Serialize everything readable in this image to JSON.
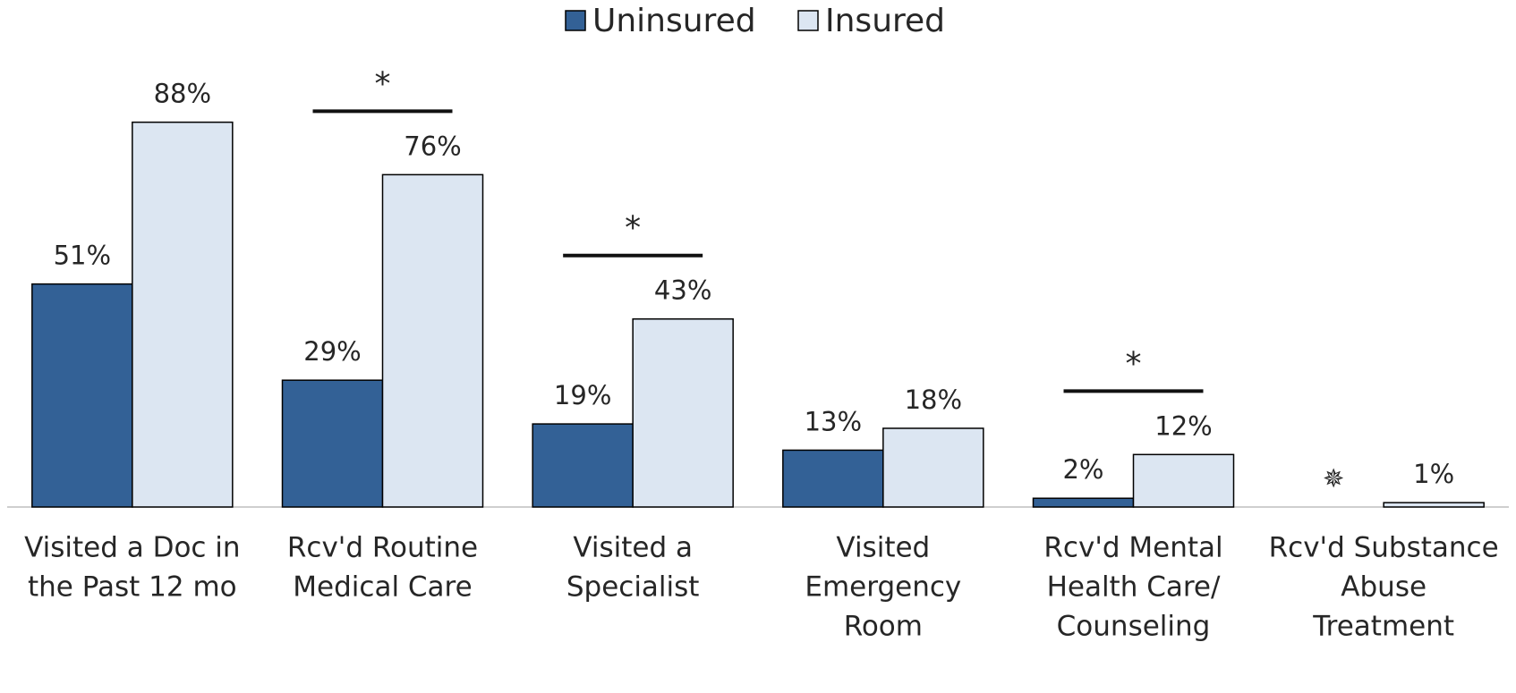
{
  "chart_data": {
    "type": "bar",
    "categories": [
      [
        "Visited a Doc in",
        "the Past 12 mo"
      ],
      [
        "Rcv'd Routine",
        "Medical Care"
      ],
      [
        "Visited a",
        "Specialist"
      ],
      [
        "Visited",
        "Emergency",
        "Room"
      ],
      [
        "Rcv'd Mental",
        "Health Care/",
        "Counseling"
      ],
      [
        "Rcv'd Substance",
        "Abuse",
        "Treatment"
      ]
    ],
    "series": [
      {
        "name": "Uninsured",
        "color": "#336196",
        "values": [
          51,
          29,
          19,
          13,
          2,
          null
        ],
        "value_labels": [
          "51%",
          "29%",
          "19%",
          "13%",
          "2%",
          null
        ]
      },
      {
        "name": "Insured",
        "color": "#dce6f2",
        "values": [
          88,
          76,
          43,
          18,
          12,
          1
        ],
        "value_labels": [
          "88%",
          "76%",
          "43%",
          "18%",
          "12%",
          "1%"
        ]
      }
    ],
    "ylim": [
      0,
      100
    ],
    "significant": [
      false,
      true,
      true,
      false,
      true,
      false
    ],
    "significance_marker": "*",
    "suppressed_marker": "✵",
    "legend": "top"
  }
}
